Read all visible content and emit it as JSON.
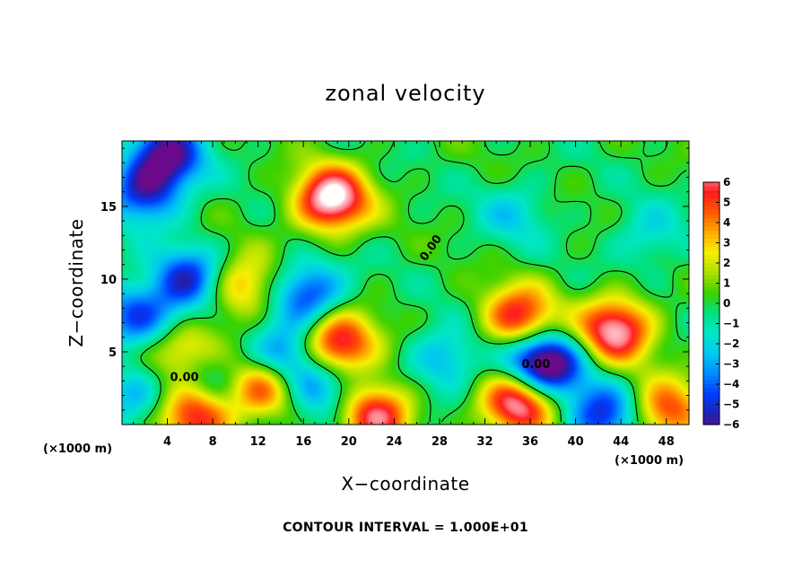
{
  "chart_data": {
    "type": "heatmap",
    "title": "zonal velocity",
    "xlabel": "X−coordinate",
    "ylabel": "Z−coordinate",
    "x_unit_label": "(×1000 m)",
    "y_unit_label": "(×1000 m)",
    "xlim": [
      0,
      50
    ],
    "ylim": [
      0,
      19.5
    ],
    "x_ticks": [
      4,
      8,
      12,
      16,
      20,
      24,
      28,
      32,
      36,
      40,
      44,
      48
    ],
    "x_tick_labels": [
      "4",
      "8",
      "12",
      "16",
      "20",
      "24",
      "28",
      "32",
      "36",
      "40",
      "44",
      "48"
    ],
    "y_ticks": [
      5,
      10,
      15
    ],
    "y_tick_labels": [
      "5",
      "10",
      "15"
    ],
    "colorbar": {
      "min": -6,
      "max": 6,
      "ticks": [
        6,
        5,
        4,
        3,
        2,
        1,
        0,
        -1,
        -2,
        -3,
        -4,
        -5,
        -6
      ],
      "tick_labels": [
        "6",
        "5",
        "4",
        "3",
        "2",
        "1",
        "0",
        "−1",
        "−2",
        "−3",
        "−4",
        "−5",
        "−6"
      ],
      "colors": [
        "#6a0a8a",
        "#2020b0",
        "#0050ff",
        "#0099ff",
        "#00d8e0",
        "#00e8b8",
        "#00e070",
        "#3ed000",
        "#b0e000",
        "#f0f000",
        "#ffb000",
        "#ff7000",
        "#ff2000",
        "#ff4850",
        "#ff9090",
        "#ffffff"
      ]
    },
    "contour_interval_label": "CONTOUR INTERVAL = 1.000E+01",
    "contour_labels": [
      "0.00",
      "0.00",
      "0.00"
    ],
    "features": [
      {
        "kind": "max",
        "x": 18.5,
        "z": 15.5,
        "value": 8
      },
      {
        "kind": "max",
        "x": 19,
        "z": 5.5,
        "value": 7
      },
      {
        "kind": "max",
        "x": 43.5,
        "z": 6.5,
        "value": 7
      },
      {
        "kind": "max",
        "x": 35,
        "z": 1.5,
        "value": 7
      },
      {
        "kind": "max",
        "x": 12.5,
        "z": 2.7,
        "value": 6
      },
      {
        "kind": "max",
        "x": 22.5,
        "z": 0.7,
        "value": 6
      },
      {
        "kind": "max",
        "x": 6.5,
        "z": 0.7,
        "value": 6
      },
      {
        "kind": "max",
        "x": 4.5,
        "z": 5.5,
        "value": 6
      },
      {
        "kind": "max",
        "x": 35,
        "z": 7.3,
        "value": 6
      },
      {
        "kind": "max",
        "x": 48,
        "z": 0.9,
        "value": 5
      },
      {
        "kind": "max",
        "x": 10.5,
        "z": 9.5,
        "value": 4
      },
      {
        "kind": "min",
        "x": 4,
        "z": 18.5,
        "value": -6
      },
      {
        "kind": "min",
        "x": 2,
        "z": 16,
        "value": -5
      },
      {
        "kind": "min",
        "x": 16.5,
        "z": 9,
        "value": -5
      },
      {
        "kind": "min",
        "x": 6,
        "z": 10,
        "value": -5
      },
      {
        "kind": "min",
        "x": 3.5,
        "z": 6.5,
        "value": -5
      },
      {
        "kind": "min",
        "x": 14,
        "z": 4.5,
        "value": -5
      },
      {
        "kind": "min",
        "x": 28.5,
        "z": 4.5,
        "value": -3
      },
      {
        "kind": "min",
        "x": 38,
        "z": 4,
        "value": -4
      },
      {
        "kind": "min",
        "x": 42.5,
        "z": 0.6,
        "value": -5
      },
      {
        "kind": "min",
        "x": 17.5,
        "z": 2.5,
        "value": -4
      },
      {
        "kind": "min",
        "x": 34.5,
        "z": 14.5,
        "value": -2
      },
      {
        "kind": "min",
        "x": 46.5,
        "z": 13,
        "value": -2
      },
      {
        "kind": "min",
        "x": 0.5,
        "z": 8,
        "value": -3
      },
      {
        "kind": "min",
        "x": 8,
        "z": 2.8,
        "value": -2
      },
      {
        "kind": "min",
        "x": 1,
        "z": 1.8,
        "value": -3
      },
      {
        "kind": "min",
        "x": 36.5,
        "z": 4.3,
        "value": -5
      }
    ]
  }
}
